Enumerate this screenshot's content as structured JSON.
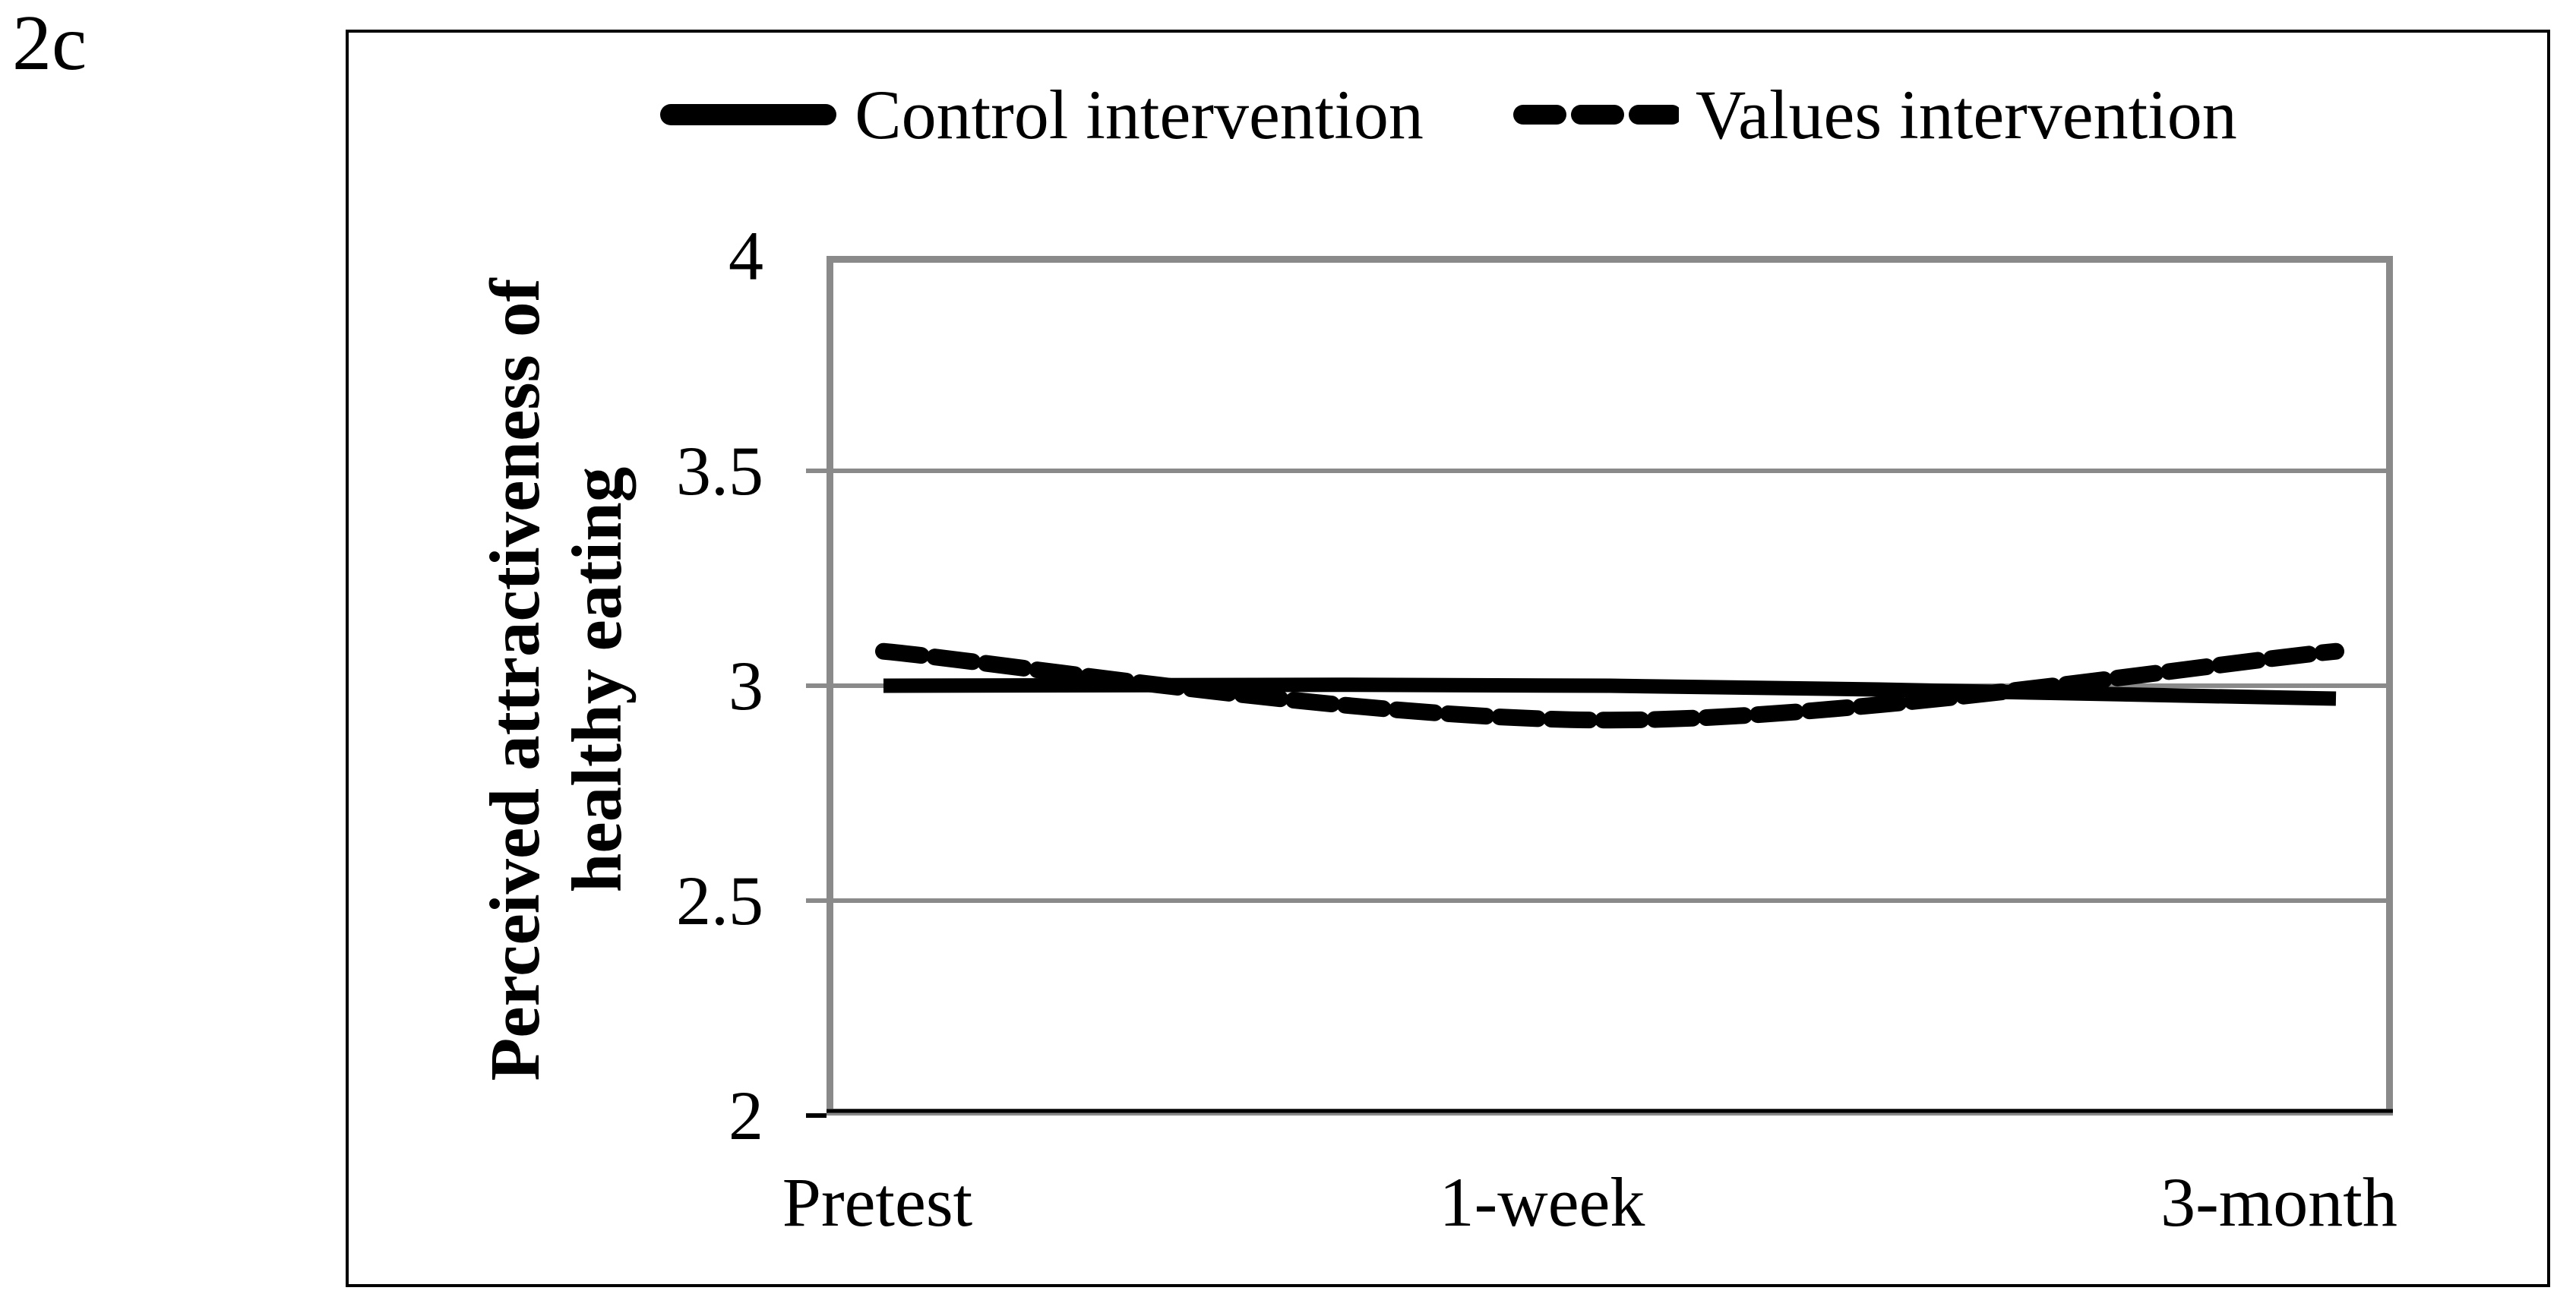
{
  "figure_label": "2c",
  "legend": {
    "items": [
      {
        "label": "Control intervention",
        "style": "solid"
      },
      {
        "label": "Values intervention",
        "style": "dashed"
      }
    ]
  },
  "chart_data": {
    "type": "line",
    "smoothed": true,
    "categories": [
      "Pretest",
      "1-week",
      "3-month"
    ],
    "series": [
      {
        "name": "Control intervention",
        "style": "solid",
        "color": "#000000",
        "values": [
          3.0,
          3.0,
          2.97
        ]
      },
      {
        "name": "Values intervention",
        "style": "dashed",
        "color": "#000000",
        "values": [
          3.08,
          2.92,
          3.08
        ]
      }
    ],
    "title": "",
    "xlabel": "",
    "ylabel": "Perceived attractiveness of healthy eating",
    "ylabel_lines": [
      "Perceived attractiveness of",
      "healthy eating"
    ],
    "ylim": [
      2,
      4
    ],
    "yticks": [
      4,
      3.5,
      3,
      2.5,
      2
    ],
    "ytick_labels": [
      "4",
      "3.5",
      "3",
      "2.5",
      "2"
    ],
    "grid": "horizontal-major",
    "legend_position": "top-center",
    "axis_border_color": "#8a8a8a",
    "gridline_color": "#8a8a8a",
    "x_axis_line_color": "#000000"
  }
}
